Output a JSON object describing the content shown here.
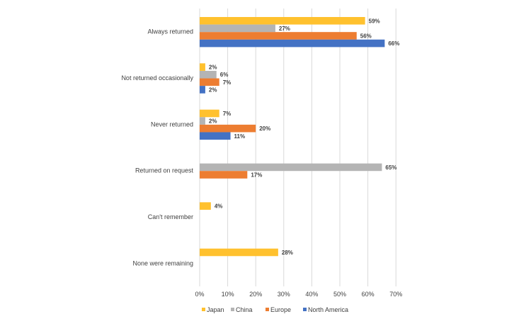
{
  "chart_data": {
    "type": "bar",
    "orientation": "horizontal",
    "categories": [
      "Always returned",
      "Not returned occasionally",
      "Never returned",
      "Returned on request",
      "Can't remember",
      "None were remaining"
    ],
    "series": [
      {
        "name": "Japan",
        "color": "#FFC12E",
        "values": [
          59,
          2,
          7,
          null,
          4,
          28
        ]
      },
      {
        "name": "China",
        "color": "#B4B4B4",
        "values": [
          27,
          6,
          2,
          65,
          null,
          null
        ]
      },
      {
        "name": "Europe",
        "color": "#ED7D31",
        "values": [
          56,
          7,
          20,
          17,
          null,
          null
        ]
      },
      {
        "name": "North America",
        "color": "#4472C4",
        "values": [
          66,
          2,
          11,
          null,
          null,
          null
        ]
      }
    ],
    "xlim": [
      0,
      70
    ],
    "x_ticks": [
      "0%",
      "10%",
      "20%",
      "30%",
      "40%",
      "50%",
      "60%",
      "70%"
    ],
    "value_suffix": "%",
    "grid": "vertical",
    "legend_position": "bottom"
  }
}
